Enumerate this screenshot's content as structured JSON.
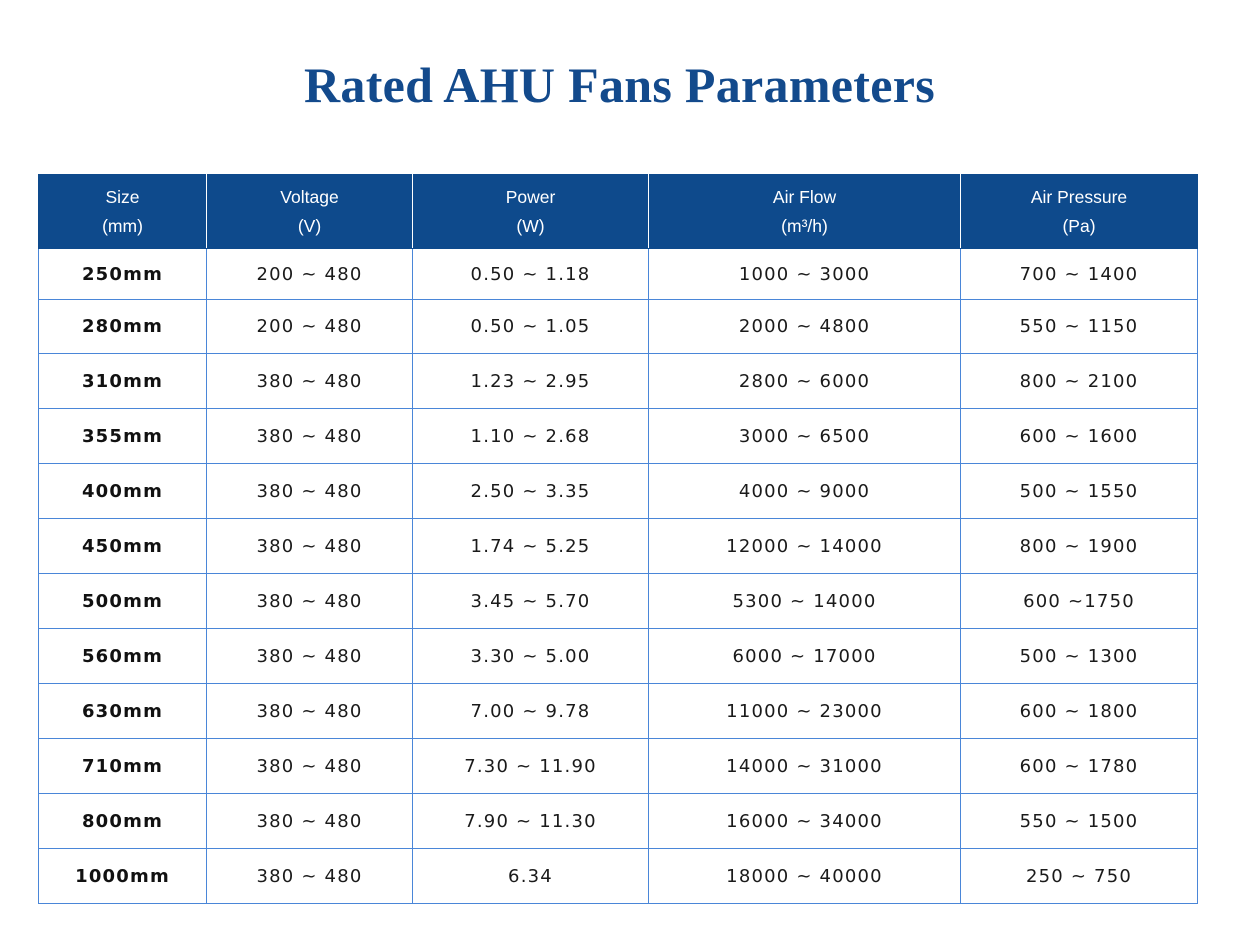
{
  "title": "Rated AHU Fans Parameters",
  "colors": {
    "title": "#134a8c",
    "header_bg": "#0e4a8c",
    "header_text": "#ffffff",
    "grid_lines": "#4a86d8"
  },
  "table": {
    "headers": [
      {
        "name": "Size",
        "unit": "(mm)"
      },
      {
        "name": "Voltage",
        "unit": "(V)"
      },
      {
        "name": "Power",
        "unit": "(W)"
      },
      {
        "name": "Air Flow",
        "unit": "(m³/h)"
      },
      {
        "name": "Air Pressure",
        "unit": "(Pa)"
      }
    ],
    "rows": [
      {
        "size": "250mm",
        "voltage": "200 ~ 480",
        "power": "0.50 ~ 1.18",
        "air_flow": "1000 ~ 3000",
        "air_pressure": "700 ~ 1400"
      },
      {
        "size": "280mm",
        "voltage": "200 ~ 480",
        "power": "0.50 ~ 1.05",
        "air_flow": "2000 ~ 4800",
        "air_pressure": "550 ~ 1150"
      },
      {
        "size": "310mm",
        "voltage": "380 ~ 480",
        "power": "1.23 ~ 2.95",
        "air_flow": "2800 ~ 6000",
        "air_pressure": "800 ~ 2100"
      },
      {
        "size": "355mm",
        "voltage": "380 ~ 480",
        "power": "1.10 ~ 2.68",
        "air_flow": "3000 ~ 6500",
        "air_pressure": "600 ~ 1600"
      },
      {
        "size": "400mm",
        "voltage": "380 ~ 480",
        "power": "2.50 ~ 3.35",
        "air_flow": "4000 ~ 9000",
        "air_pressure": "500 ~ 1550"
      },
      {
        "size": "450mm",
        "voltage": "380 ~ 480",
        "power": "1.74 ~ 5.25",
        "air_flow": "12000 ~ 14000",
        "air_pressure": "800 ~ 1900"
      },
      {
        "size": "500mm",
        "voltage": "380 ~ 480",
        "power": "3.45 ~ 5.70",
        "air_flow": "5300 ~ 14000",
        "air_pressure": "600 ~1750"
      },
      {
        "size": "560mm",
        "voltage": "380 ~ 480",
        "power": "3.30 ~ 5.00",
        "air_flow": "6000 ~ 17000",
        "air_pressure": "500 ~ 1300"
      },
      {
        "size": "630mm",
        "voltage": "380 ~ 480",
        "power": "7.00 ~ 9.78",
        "air_flow": "11000 ~ 23000",
        "air_pressure": "600 ~ 1800"
      },
      {
        "size": "710mm",
        "voltage": "380 ~ 480",
        "power": "7.30 ~ 11.90",
        "air_flow": "14000 ~ 31000",
        "air_pressure": "600 ~ 1780"
      },
      {
        "size": "800mm",
        "voltage": "380 ~ 480",
        "power": "7.90 ~ 11.30",
        "air_flow": "16000 ~ 34000",
        "air_pressure": "550 ~ 1500"
      },
      {
        "size": "1000mm",
        "voltage": "380 ~ 480",
        "power": "6.34",
        "air_flow": "18000 ~ 40000",
        "air_pressure": "250 ~ 750"
      }
    ]
  }
}
